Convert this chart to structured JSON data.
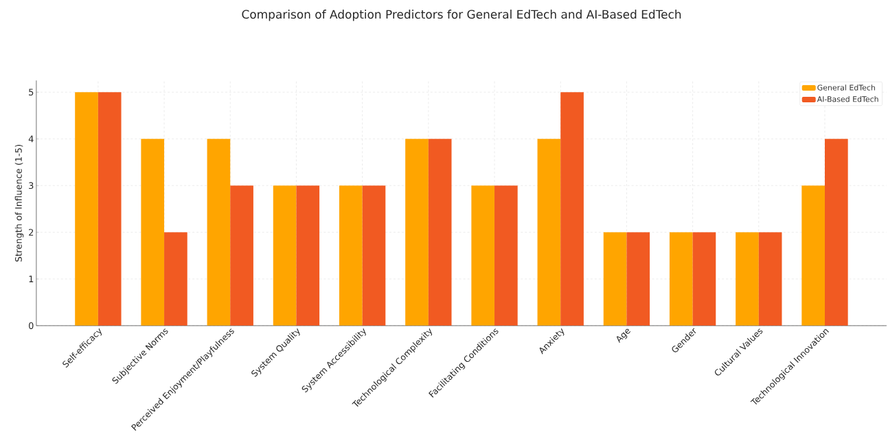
{
  "chart_data": {
    "type": "bar",
    "title": "Comparison of Adoption Predictors for General EdTech and AI-Based EdTech",
    "ylabel": "Strength of Influence (1-5)",
    "categories": [
      "Self-efficacy",
      "Subjective Norms",
      "Perceived Enjoyment/Playfulness",
      "System Quality",
      "System Accessibility",
      "Technological Complexity",
      "Facilitating Conditions",
      "Anxiety",
      "Age",
      "Gender",
      "Cultural Values",
      "Technological Innovation"
    ],
    "series": [
      {
        "name": "General EdTech",
        "color": "#ffa500",
        "values": [
          5,
          4,
          4,
          3,
          3,
          4,
          3,
          4,
          2,
          2,
          2,
          3
        ]
      },
      {
        "name": "AI-Based EdTech",
        "color": "#f15a22",
        "values": [
          5,
          2,
          3,
          3,
          3,
          4,
          3,
          5,
          2,
          2,
          2,
          4
        ]
      }
    ],
    "ylim": [
      0,
      5.25
    ],
    "yticks": [
      0,
      1,
      2,
      3,
      4,
      5
    ],
    "grid": true,
    "legend": "top right"
  }
}
